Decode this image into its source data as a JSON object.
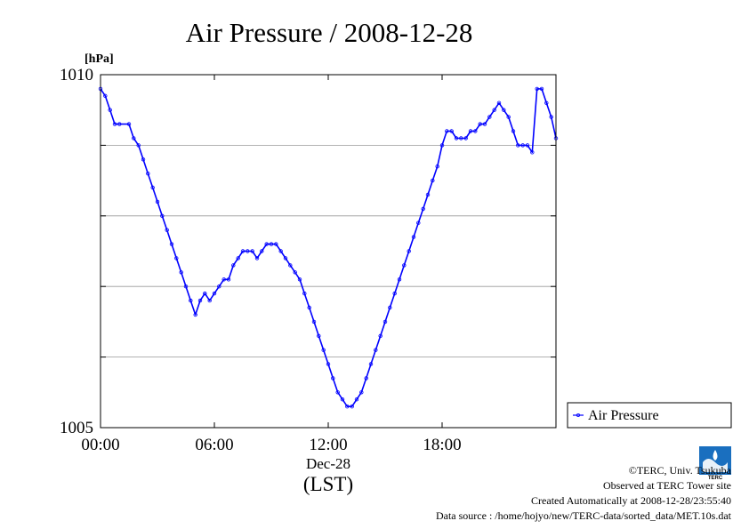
{
  "chart_data": {
    "type": "line",
    "title": "Air Pressure / 2008-12-28",
    "y_unit_label": "[hPa]",
    "ylim": [
      1005,
      1010
    ],
    "y_ticks": [
      {
        "value": 1010,
        "label": "1010"
      },
      {
        "value": 1009,
        "label": ""
      },
      {
        "value": 1008,
        "label": ""
      },
      {
        "value": 1007,
        "label": ""
      },
      {
        "value": 1006,
        "label": ""
      },
      {
        "value": 1005,
        "label": "1005"
      }
    ],
    "xlim_hours": [
      0,
      24
    ],
    "x_ticks": [
      {
        "value": 0,
        "label": "00:00"
      },
      {
        "value": 6,
        "label": "06:00"
      },
      {
        "value": 12,
        "label": "12:00"
      },
      {
        "value": 18,
        "label": "18:00"
      }
    ],
    "x_date_label": "Dec-28",
    "x_axis_label": "(LST)",
    "grid": true,
    "legend_position": "right",
    "series": [
      {
        "name": "Air Pressure",
        "color": "#0000ff",
        "x_hours": [
          0.0,
          0.25,
          0.5,
          0.75,
          1.0,
          1.5,
          1.75,
          2.0,
          2.25,
          2.5,
          2.75,
          3.0,
          3.25,
          3.5,
          3.75,
          4.0,
          4.25,
          4.5,
          4.75,
          5.0,
          5.25,
          5.5,
          5.75,
          6.0,
          6.25,
          6.5,
          6.75,
          7.0,
          7.25,
          7.5,
          7.75,
          8.0,
          8.25,
          8.5,
          8.75,
          9.0,
          9.25,
          9.5,
          9.75,
          10.0,
          10.25,
          10.5,
          10.75,
          11.0,
          11.25,
          11.5,
          11.75,
          12.0,
          12.25,
          12.5,
          12.75,
          13.0,
          13.25,
          13.5,
          13.75,
          14.0,
          14.25,
          14.5,
          14.75,
          15.0,
          15.25,
          15.5,
          15.75,
          16.0,
          16.25,
          16.5,
          16.75,
          17.0,
          17.25,
          17.5,
          17.75,
          18.0,
          18.25,
          18.5,
          18.75,
          19.0,
          19.25,
          19.5,
          19.75,
          20.0,
          20.25,
          20.5,
          20.75,
          21.0,
          21.25,
          21.5,
          21.75,
          22.0,
          22.25,
          22.5,
          22.75,
          23.0,
          23.25,
          23.5,
          23.75,
          24.0
        ],
        "values": [
          1009.8,
          1009.7,
          1009.5,
          1009.3,
          1009.3,
          1009.3,
          1009.1,
          1009.0,
          1008.8,
          1008.6,
          1008.4,
          1008.2,
          1008.0,
          1007.8,
          1007.6,
          1007.4,
          1007.2,
          1007.0,
          1006.8,
          1006.6,
          1006.8,
          1006.9,
          1006.8,
          1006.9,
          1007.0,
          1007.1,
          1007.1,
          1007.3,
          1007.4,
          1007.5,
          1007.5,
          1007.5,
          1007.4,
          1007.5,
          1007.6,
          1007.6,
          1007.6,
          1007.5,
          1007.4,
          1007.3,
          1007.2,
          1007.1,
          1006.9,
          1006.7,
          1006.5,
          1006.3,
          1006.1,
          1005.9,
          1005.7,
          1005.5,
          1005.4,
          1005.3,
          1005.3,
          1005.4,
          1005.5,
          1005.7,
          1005.9,
          1006.1,
          1006.3,
          1006.5,
          1006.7,
          1006.9,
          1007.1,
          1007.3,
          1007.5,
          1007.7,
          1007.9,
          1008.1,
          1008.3,
          1008.5,
          1008.7,
          1009.0,
          1009.2,
          1009.2,
          1009.1,
          1009.1,
          1009.1,
          1009.2,
          1009.2,
          1009.3,
          1009.3,
          1009.4,
          1009.5,
          1009.6,
          1009.5,
          1009.4,
          1009.2,
          1009.0,
          1009.0,
          1009.0,
          1008.9,
          1009.8,
          1009.8,
          1009.6,
          1009.4,
          1009.1
        ]
      }
    ]
  },
  "credits": {
    "logo_text": "TERC",
    "copyright": "©TERC, Univ. Tsukuba",
    "observed": "Observed at TERC Tower site",
    "created": "Created Automatically at 2008-12-28/23:55:40",
    "source": "Data source : /home/hojyo/new/TERC-data/sorted_data/MET.10s.dat"
  }
}
